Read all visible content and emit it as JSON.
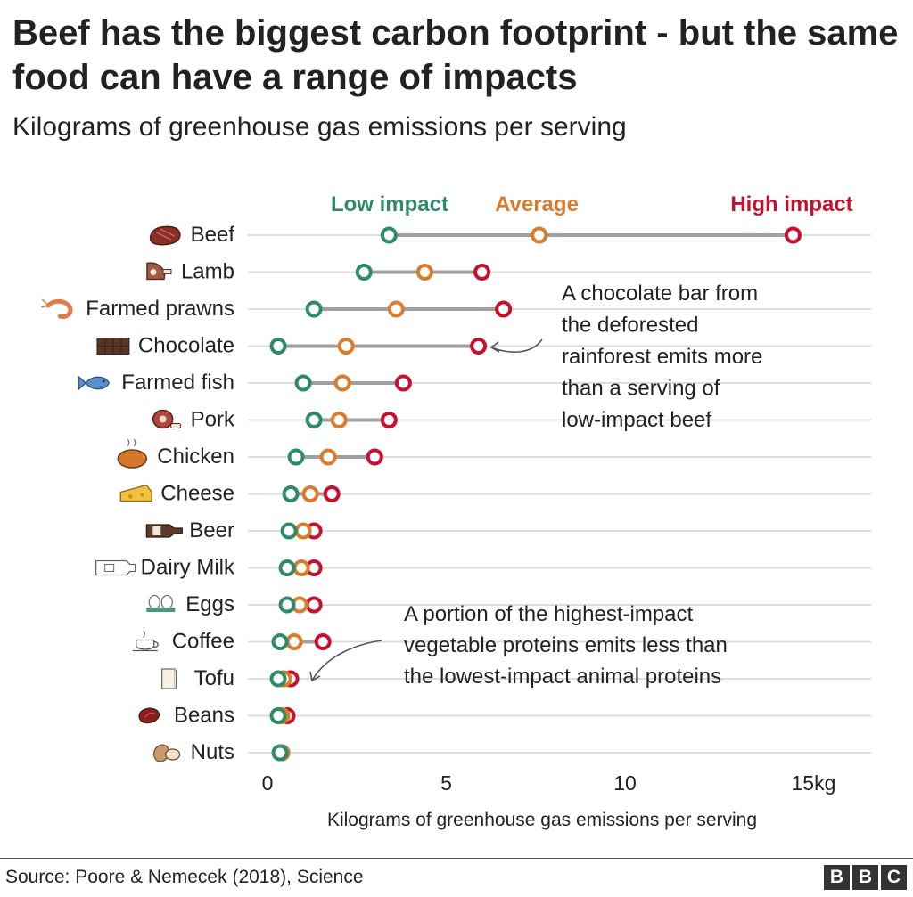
{
  "title": "Beef has the biggest carbon footprint - but the same food can have a range of impacts",
  "subtitle": "Kilograms of greenhouse gas emissions per serving",
  "source": "Source: Poore & Nemecek (2018), Science",
  "logo_letters": [
    "B",
    "B",
    "C"
  ],
  "colors": {
    "low": "#2e8b6a",
    "average": "#d97c2b",
    "high": "#c8102e",
    "connector": "#a0a0a0",
    "gridline": "#dddddd"
  },
  "chart_data": {
    "type": "dot-range",
    "xlabel": "Kilograms of greenhouse gas emissions per serving",
    "xlim": [
      0,
      17
    ],
    "xticks": [
      {
        "value": 0,
        "label": "0"
      },
      {
        "value": 5,
        "label": "5"
      },
      {
        "value": 10,
        "label": "10"
      },
      {
        "value": 15,
        "label": "15kg"
      }
    ],
    "legend": [
      {
        "key": "low",
        "label": "Low impact"
      },
      {
        "key": "average",
        "label": "Average"
      },
      {
        "key": "high",
        "label": "High impact"
      }
    ],
    "items": [
      {
        "name": "Beef",
        "icon": "steak-icon",
        "low": 3.4,
        "average": 7.6,
        "high": 14.7
      },
      {
        "name": "Lamb",
        "icon": "lamb-leg-icon",
        "low": 2.7,
        "average": 4.4,
        "high": 6.0
      },
      {
        "name": "Farmed prawns",
        "icon": "prawn-icon",
        "low": 1.3,
        "average": 3.6,
        "high": 6.6
      },
      {
        "name": "Chocolate",
        "icon": "chocolate-bar-icon",
        "low": 0.3,
        "average": 2.2,
        "high": 5.9
      },
      {
        "name": "Farmed fish",
        "icon": "fish-icon",
        "low": 1.0,
        "average": 2.1,
        "high": 3.8
      },
      {
        "name": "Pork",
        "icon": "ham-icon",
        "low": 1.3,
        "average": 2.0,
        "high": 3.4
      },
      {
        "name": "Chicken",
        "icon": "roast-chicken-icon",
        "low": 0.8,
        "average": 1.7,
        "high": 3.0
      },
      {
        "name": "Cheese",
        "icon": "cheese-icon",
        "low": 0.65,
        "average": 1.2,
        "high": 1.8
      },
      {
        "name": "Beer",
        "icon": "beer-bottle-icon",
        "low": 0.6,
        "average": 1.0,
        "high": 1.3
      },
      {
        "name": "Dairy Milk",
        "icon": "milk-bottle-icon",
        "low": 0.55,
        "average": 0.95,
        "high": 1.3
      },
      {
        "name": "Eggs",
        "icon": "eggs-icon",
        "low": 0.55,
        "average": 0.9,
        "high": 1.3
      },
      {
        "name": "Coffee",
        "icon": "coffee-cup-icon",
        "low": 0.35,
        "average": 0.75,
        "high": 1.55
      },
      {
        "name": "Tofu",
        "icon": "tofu-icon",
        "low": 0.3,
        "average": 0.45,
        "high": 0.65
      },
      {
        "name": "Beans",
        "icon": "bean-icon",
        "low": 0.3,
        "average": 0.4,
        "high": 0.55
      },
      {
        "name": "Nuts",
        "icon": "nuts-icon",
        "low": 0.35,
        "average": 0.4,
        "high": 0.4
      }
    ],
    "annotations": [
      {
        "lines": [
          "A chocolate bar from",
          "the deforested",
          "rainforest emits more",
          "than a serving of",
          "low-impact beef"
        ],
        "target": "Chocolate"
      },
      {
        "lines": [
          "A portion of the highest-impact",
          "vegetable proteins emits less than",
          "the lowest-impact animal proteins"
        ],
        "target": "Tofu"
      }
    ]
  }
}
